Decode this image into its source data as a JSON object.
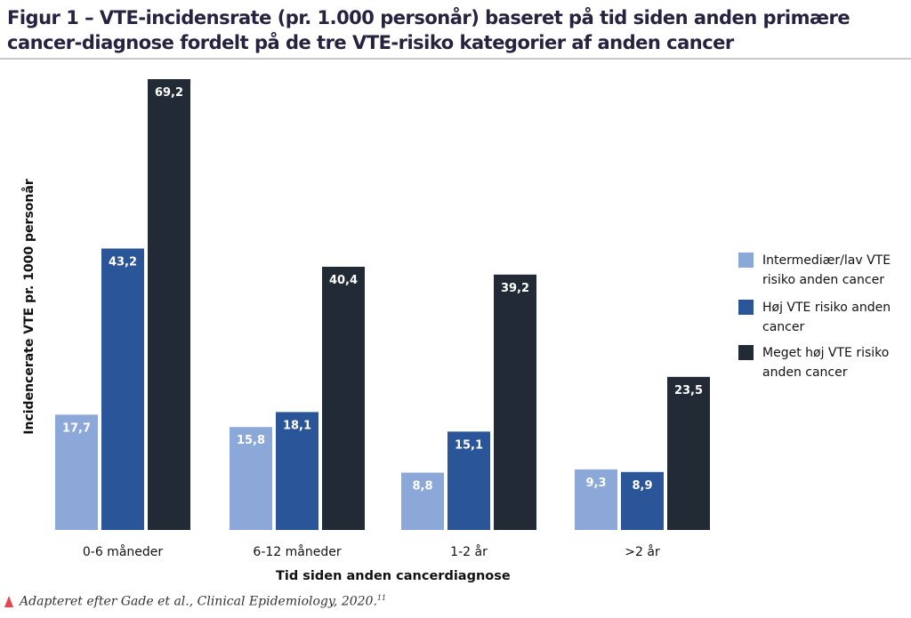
{
  "title": "Figur 1 – VTE-incidensrate (pr. 1.000 personår) baseret på tid siden anden primære cancer-diagnose fordelt på de tre VTE-risiko kategorier af anden cancer",
  "footer": {
    "text": "Adapteret efter Gade et al., Clinical Epidemiology, 2020.",
    "ref": "11"
  },
  "chart_data": {
    "type": "bar",
    "xlabel": "Tid siden anden cancerdiagnose",
    "ylabel": "Incidencerate VTE pr. 1000 personår",
    "categories": [
      "0-6 måneder",
      "6-12 måneder",
      "1-2 år",
      ">2 år"
    ],
    "series": [
      {
        "name": "Intermediær/lav VTE risiko anden cancer",
        "color": "#8ca8d9",
        "values": [
          17.7,
          15.8,
          8.8,
          9.3
        ],
        "labels": [
          "17,7",
          "15,8",
          "8,8",
          "9,3"
        ]
      },
      {
        "name": "Høj VTE risiko anden cancer",
        "color": "#2b5599",
        "values": [
          43.2,
          18.1,
          15.1,
          8.9
        ],
        "labels": [
          "43,2",
          "18,1",
          "15,1",
          "8,9"
        ]
      },
      {
        "name": "Meget høj VTE risiko anden cancer",
        "color": "#222a36",
        "values": [
          69.2,
          40.4,
          39.2,
          23.5
        ],
        "labels": [
          "69,2",
          "40,4",
          "39,2",
          "23,5"
        ]
      }
    ],
    "ylim": [
      0,
      69.2
    ],
    "grid": false,
    "legend": "right"
  }
}
